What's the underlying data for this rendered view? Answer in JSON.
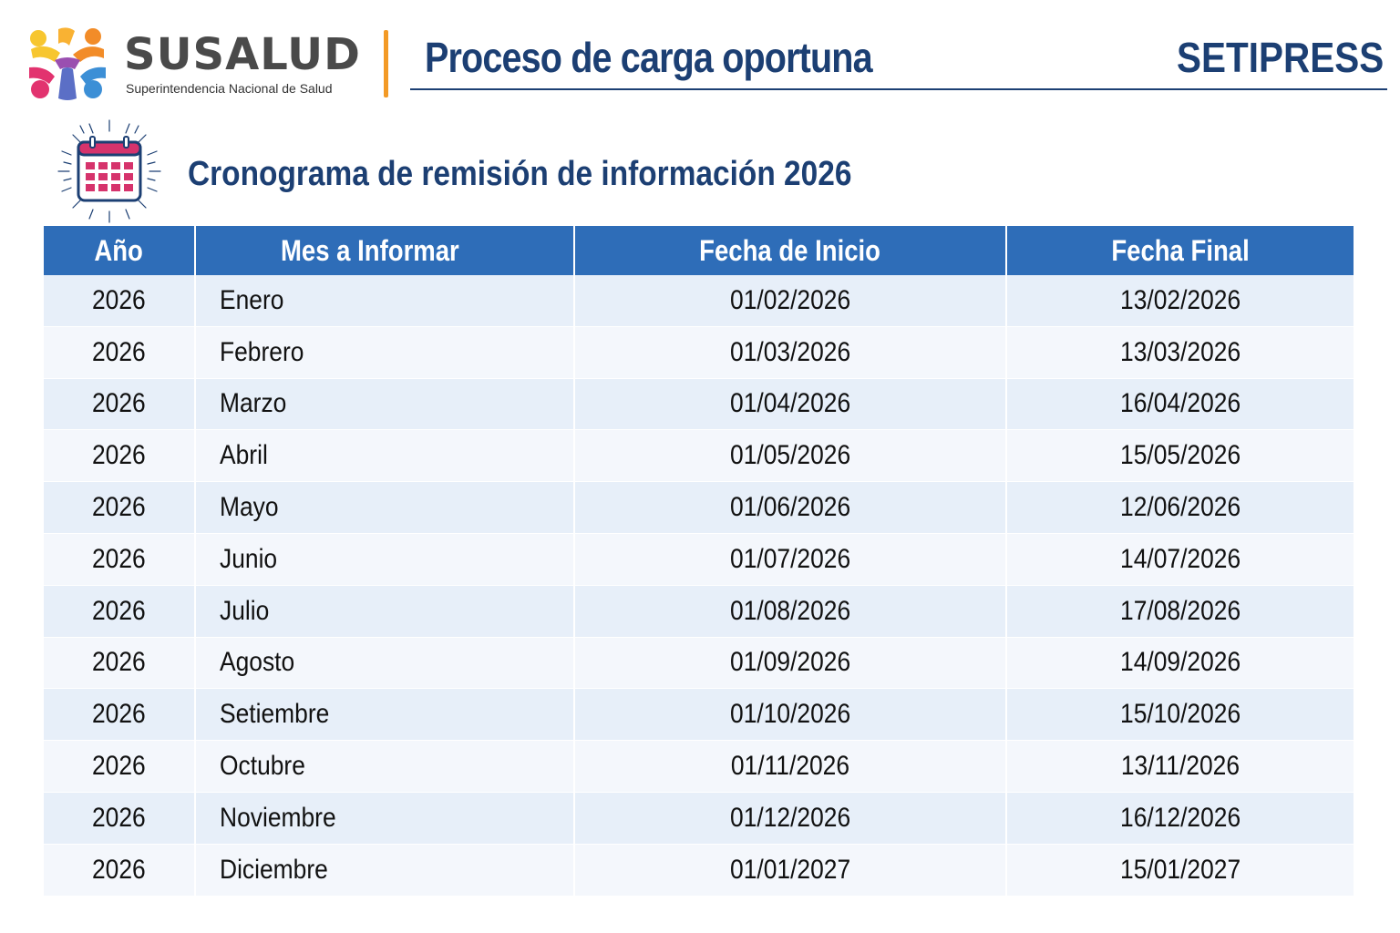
{
  "header": {
    "brand_name": "SUSALUD",
    "brand_subtitle": "Superintendencia Nacional de Salud",
    "process_title": "Proceso de carga oportuna",
    "program_name": "SETIPRESS"
  },
  "section": {
    "icon": "calendar-icon",
    "title": "Cronograma de remisión de información 2026"
  },
  "colors": {
    "header_bg": "#2e6db8",
    "title_navy": "#1c3f73",
    "accent_orange": "#f39a26",
    "row_odd": "#e7eff9",
    "row_even": "#f4f7fc"
  },
  "table": {
    "columns": [
      "Año",
      "Mes a Informar",
      "Fecha de Inicio",
      "Fecha Final"
    ],
    "rows": [
      [
        "2026",
        "Enero",
        "01/02/2026",
        "13/02/2026"
      ],
      [
        "2026",
        "Febrero",
        "01/03/2026",
        "13/03/2026"
      ],
      [
        "2026",
        "Marzo",
        "01/04/2026",
        "16/04/2026"
      ],
      [
        "2026",
        "Abril",
        "01/05/2026",
        "15/05/2026"
      ],
      [
        "2026",
        "Mayo",
        "01/06/2026",
        "12/06/2026"
      ],
      [
        "2026",
        "Junio",
        "01/07/2026",
        "14/07/2026"
      ],
      [
        "2026",
        "Julio",
        "01/08/2026",
        "17/08/2026"
      ],
      [
        "2026",
        "Agosto",
        "01/09/2026",
        "14/09/2026"
      ],
      [
        "2026",
        "Setiembre",
        "01/10/2026",
        "15/10/2026"
      ],
      [
        "2026",
        "Octubre",
        "01/11/2026",
        "13/11/2026"
      ],
      [
        "2026",
        "Noviembre",
        "01/12/2026",
        "16/12/2026"
      ],
      [
        "2026",
        "Diciembre",
        "01/01/2027",
        "15/01/2027"
      ]
    ]
  }
}
